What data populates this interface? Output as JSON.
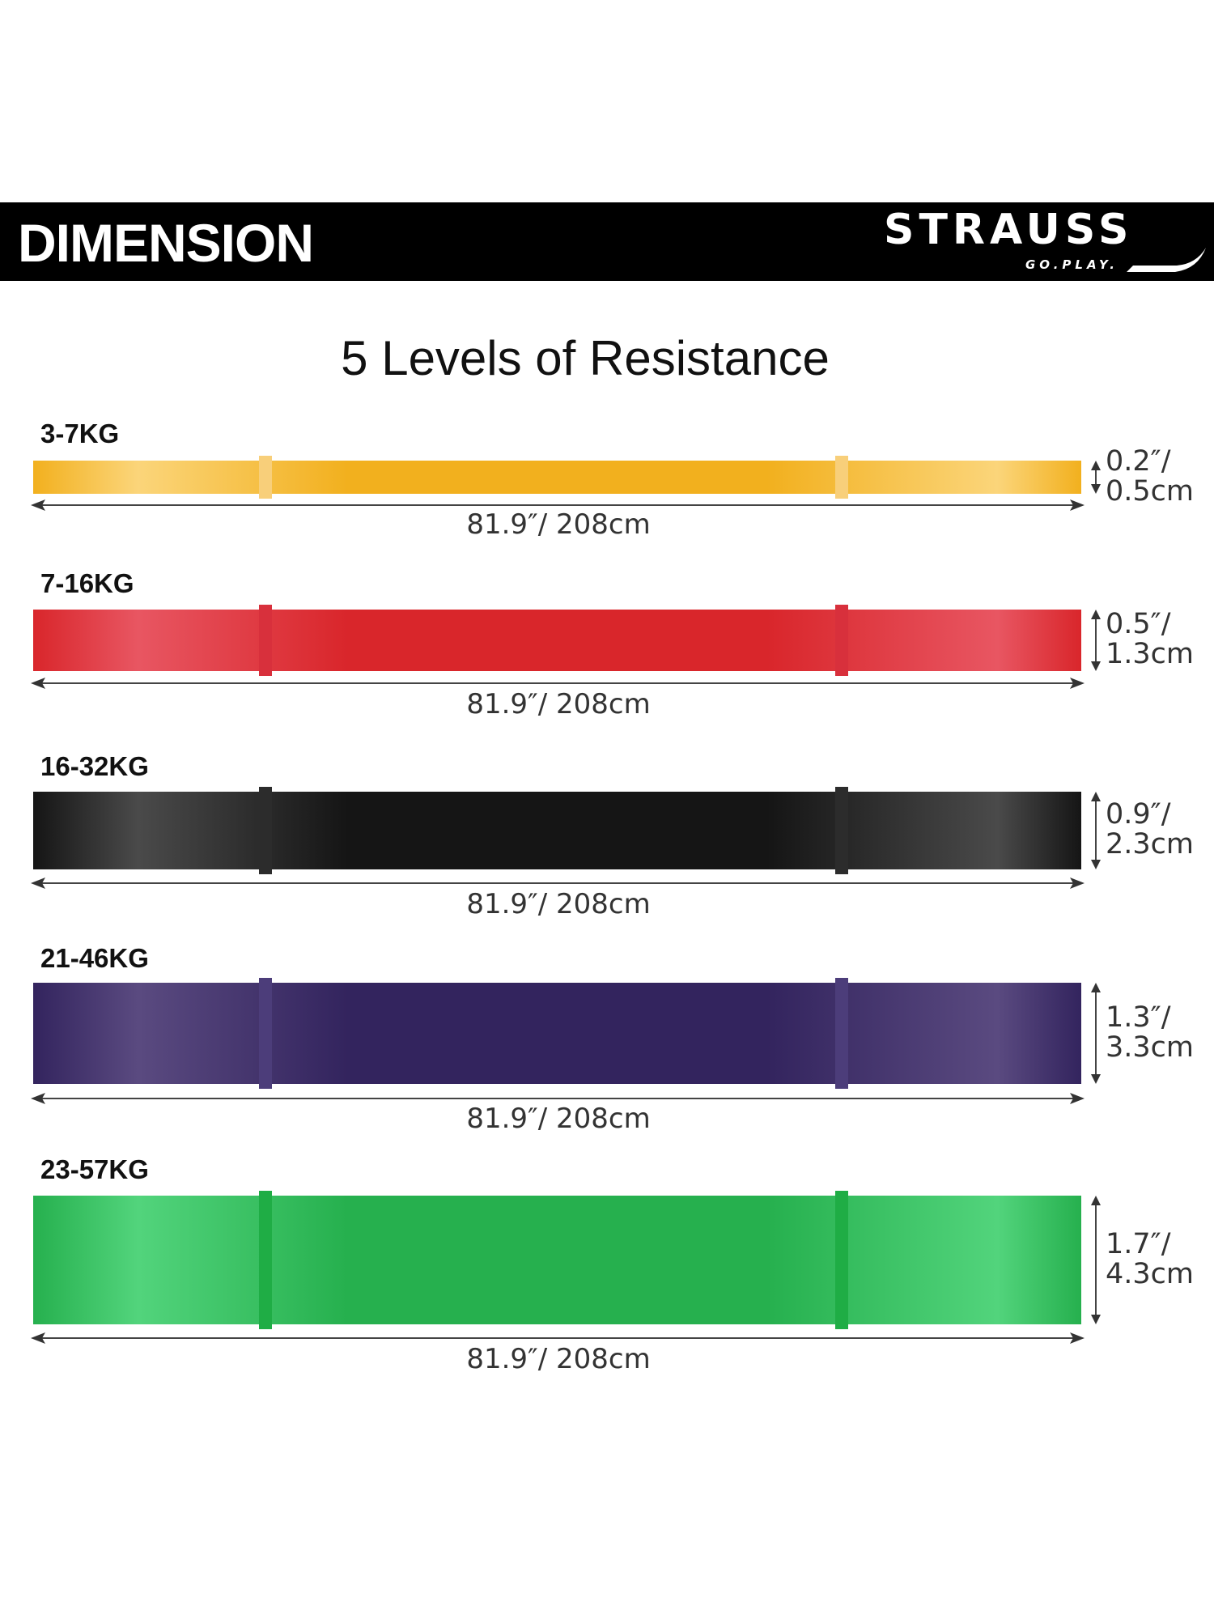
{
  "header": {
    "title": "DIMENSION",
    "logo_brand": "STRAUSS",
    "logo_tagline": "GO.PLAY."
  },
  "main_title": "5 Levels of Resistance",
  "bands": [
    {
      "resistance": "3-7KG",
      "length": "81.9″/ 208cm",
      "thickness_in": "0.2″/",
      "thickness_cm": "0.5cm",
      "color": "#f2b01e",
      "edge_color": "#fbd57a",
      "clip_color": "#f8cf7a"
    },
    {
      "resistance": "7-16KG",
      "length": "81.9″/ 208cm",
      "thickness_in": "0.5″/",
      "thickness_cm": "1.3cm",
      "color": "#d9262b",
      "edge_color": "#e85662",
      "clip_color": "#d8303c"
    },
    {
      "resistance": "16-32KG",
      "length": "81.9″/ 208cm",
      "thickness_in": "0.9″/",
      "thickness_cm": "2.3cm",
      "color": "#151515",
      "edge_color": "#4a4a4a",
      "clip_color": "#2c2c2c"
    },
    {
      "resistance": "21-46KG",
      "length": "81.9″/ 208cm",
      "thickness_in": "1.3″/",
      "thickness_cm": "3.3cm",
      "color": "#33245e",
      "edge_color": "#5a4a80",
      "clip_color": "#4c3d7a"
    },
    {
      "resistance": "23-57KG",
      "length": "81.9″/ 208cm",
      "thickness_in": "1.7″/",
      "thickness_cm": "4.3cm",
      "color": "#26b04e",
      "edge_color": "#52d47c",
      "clip_color": "#1fad45"
    }
  ]
}
